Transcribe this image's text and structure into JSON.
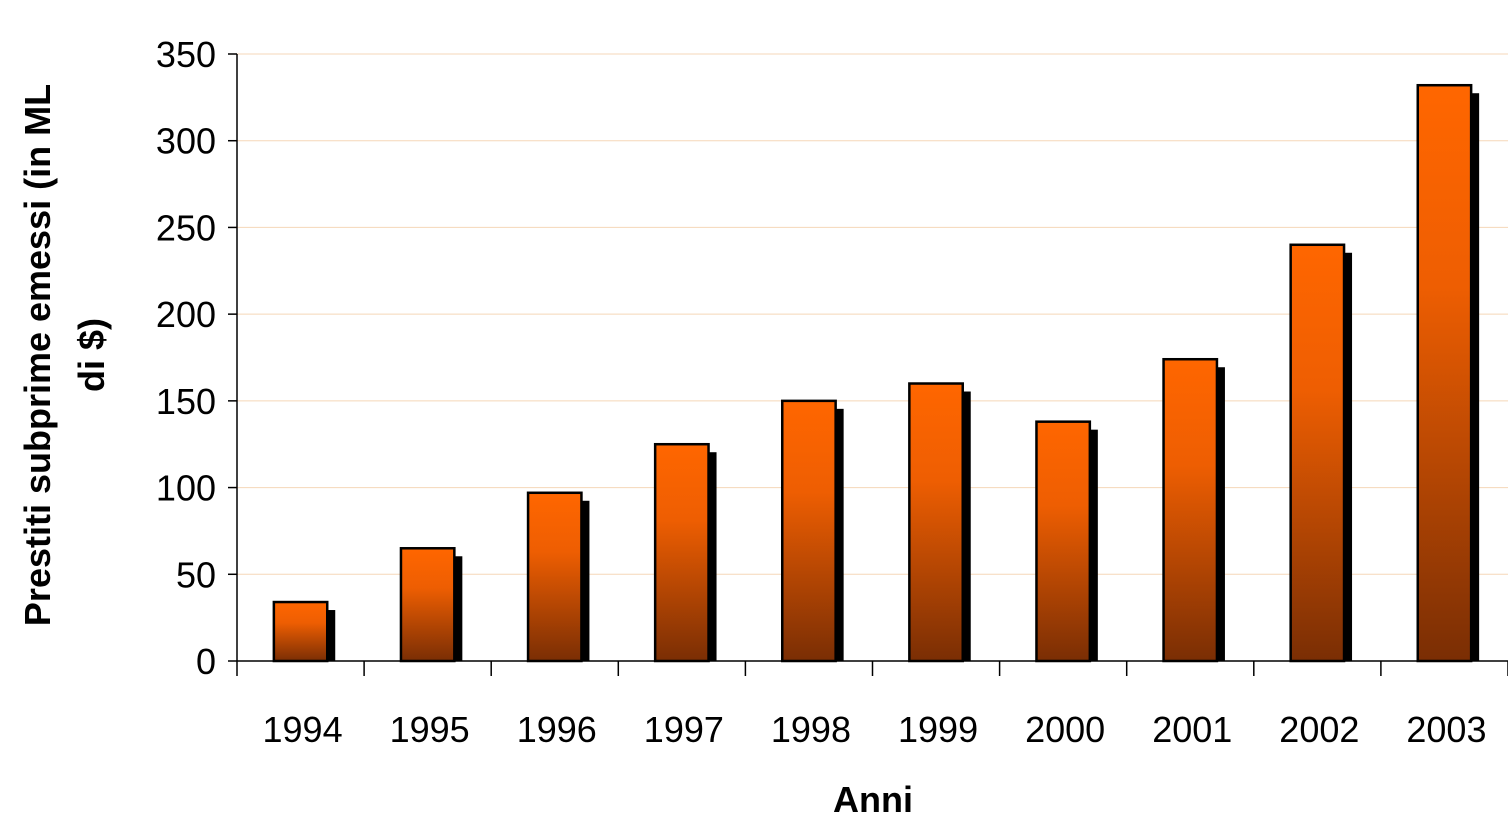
{
  "chart_data": {
    "type": "bar",
    "title": "",
    "xlabel": "Anni",
    "ylabel_lines": [
      "Prestiti subprime emessi (in ML",
      "di $)"
    ],
    "categories": [
      "1994",
      "1995",
      "1996",
      "1997",
      "1998",
      "1999",
      "2000",
      "2001",
      "2002",
      "2003"
    ],
    "series": [
      {
        "values": [
          34,
          65,
          97,
          125,
          150,
          160,
          138,
          174,
          240,
          332
        ]
      }
    ],
    "ylim": [
      0,
      350
    ],
    "yticks": [
      "0",
      "50",
      "100",
      "150",
      "200",
      "250",
      "300",
      "350"
    ],
    "grid": true,
    "legend": "none",
    "colors": {
      "bar_top": "#FF6600",
      "bar_bottom": "#7A2E04",
      "bar_shadow": "#000000",
      "gridline": "#F5D7B8",
      "axis": "#000000"
    }
  }
}
